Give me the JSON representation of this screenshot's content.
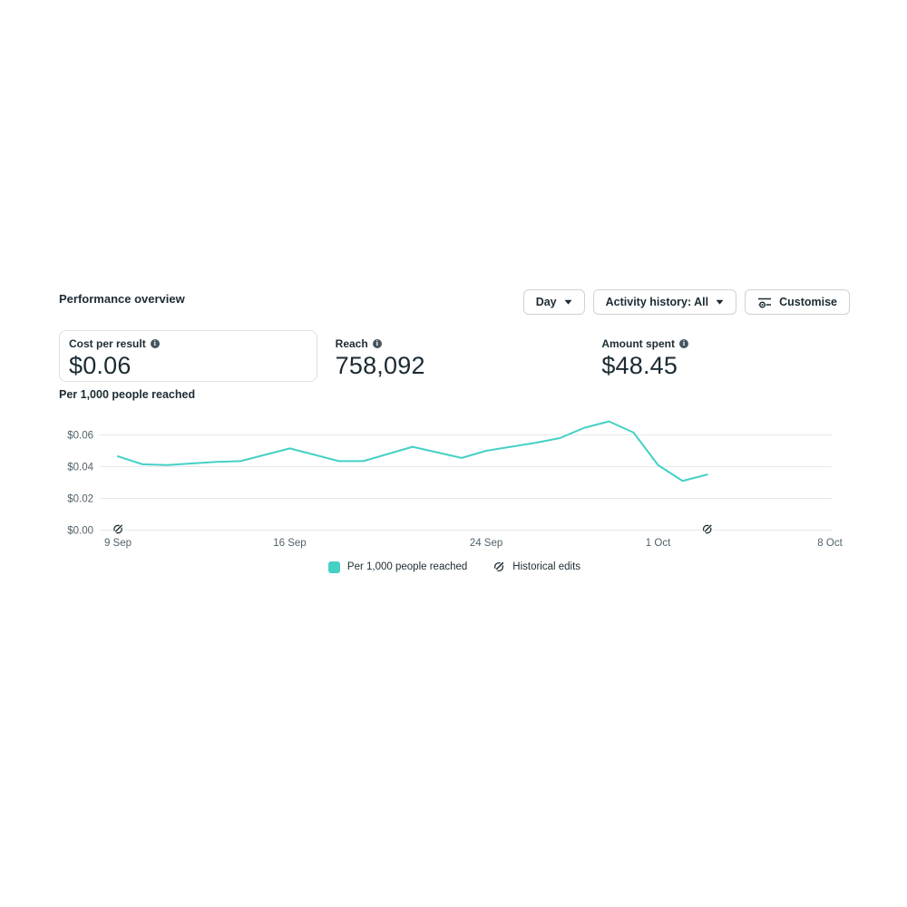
{
  "panel": {
    "title": "Performance overview"
  },
  "controls": {
    "day": "Day",
    "activity": "Activity history: All",
    "customise": "Customise"
  },
  "metrics": [
    {
      "label": "Cost per result",
      "value": "$0.06",
      "selected": true
    },
    {
      "label": "Reach",
      "value": "758,092",
      "selected": false
    },
    {
      "label": "Amount spent",
      "value": "$48.45",
      "selected": false
    }
  ],
  "chart_section_label": "Per 1,000 people reached",
  "legend": [
    {
      "label": "Per 1,000 people reached"
    },
    {
      "label": "Historical edits"
    }
  ],
  "chart_data": {
    "type": "line",
    "title": "Per 1,000 people reached",
    "x": [
      "9 Sep",
      "10 Sep",
      "11 Sep",
      "12 Sep",
      "13 Sep",
      "14 Sep",
      "15 Sep",
      "16 Sep",
      "17 Sep",
      "18 Sep",
      "19 Sep",
      "20 Sep",
      "21 Sep",
      "22 Sep",
      "23 Sep",
      "24 Sep",
      "25 Sep",
      "26 Sep",
      "27 Sep",
      "28 Sep",
      "29 Sep",
      "30 Sep",
      "1 Oct",
      "2 Oct",
      "3 Oct"
    ],
    "series": [
      {
        "name": "Per 1,000 people reached",
        "color": "#45d0c6",
        "values": [
          0.0465,
          0.0415,
          0.041,
          0.042,
          0.043,
          0.0435,
          0.0475,
          0.0515,
          0.0475,
          0.0435,
          0.0435,
          0.048,
          0.0525,
          0.049,
          0.0455,
          0.05,
          0.0525,
          0.055,
          0.058,
          0.0645,
          0.0685,
          0.0615,
          0.041,
          0.031,
          0.035
        ]
      }
    ],
    "ylim": [
      0,
      0.07
    ],
    "x_axis_span_days": 30,
    "y_ticks": [
      {
        "label": "$0.06",
        "value": 0.06
      },
      {
        "label": "$0.04",
        "value": 0.04
      },
      {
        "label": "$0.02",
        "value": 0.02
      },
      {
        "label": "$0.00",
        "value": 0.0
      }
    ],
    "x_ticks": [
      {
        "label": "9 Sep",
        "index": 0
      },
      {
        "label": "16 Sep",
        "index": 7
      },
      {
        "label": "24 Sep",
        "index": 15
      },
      {
        "label": "1 Oct",
        "index": 22
      },
      {
        "label": "8 Oct",
        "index": 29
      }
    ],
    "grid": "horizontal",
    "legend_position": "bottom",
    "historical_edit_indices": [
      0,
      24
    ],
    "axis_text_color": "#51626c",
    "grid_color": "#e5e8ea"
  }
}
